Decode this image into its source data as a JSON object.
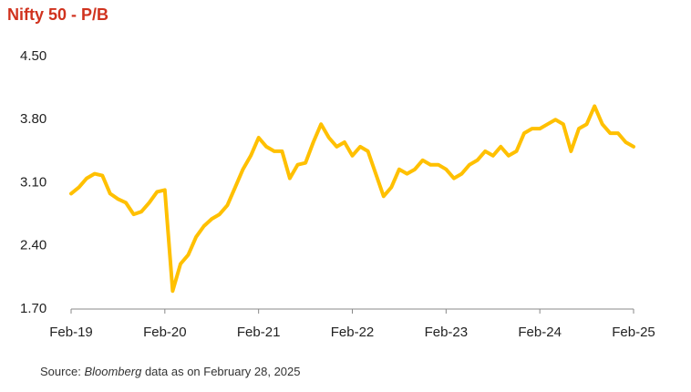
{
  "chart_data": {
    "type": "line",
    "title": "Nifty 50 - P/B",
    "source_prefix": "Source:",
    "source_italic": "Bloomberg",
    "source_suffix": "data as on February 28, 2025",
    "categories": [
      "Feb-19",
      null,
      null,
      null,
      null,
      null,
      null,
      null,
      null,
      null,
      null,
      null,
      "Feb-20",
      null,
      null,
      null,
      null,
      null,
      null,
      null,
      null,
      null,
      null,
      null,
      "Feb-21",
      null,
      null,
      null,
      null,
      null,
      null,
      null,
      null,
      null,
      null,
      null,
      "Feb-22",
      null,
      null,
      null,
      null,
      null,
      null,
      null,
      null,
      null,
      null,
      null,
      "Feb-23",
      null,
      null,
      null,
      null,
      null,
      null,
      null,
      null,
      null,
      null,
      null,
      "Feb-24",
      null,
      null,
      null,
      null,
      null,
      null,
      null,
      null,
      null,
      null,
      null,
      "Feb-25"
    ],
    "series": [
      {
        "name": "Nifty 50 P/B",
        "color": "#ffc000",
        "values": [
          2.98,
          3.05,
          3.15,
          3.2,
          3.18,
          2.98,
          2.92,
          2.88,
          2.75,
          2.78,
          2.88,
          3.0,
          3.02,
          1.9,
          2.2,
          2.3,
          2.5,
          2.62,
          2.7,
          2.75,
          2.85,
          3.05,
          3.25,
          3.4,
          3.6,
          3.5,
          3.45,
          3.45,
          3.15,
          3.3,
          3.32,
          3.55,
          3.75,
          3.6,
          3.5,
          3.55,
          3.4,
          3.5,
          3.45,
          3.2,
          2.95,
          3.05,
          3.25,
          3.2,
          3.25,
          3.35,
          3.3,
          3.3,
          3.25,
          3.15,
          3.2,
          3.3,
          3.35,
          3.45,
          3.4,
          3.5,
          3.4,
          3.45,
          3.65,
          3.7,
          3.7,
          3.75,
          3.8,
          3.75,
          3.45,
          3.7,
          3.75,
          3.95,
          3.75,
          3.65,
          3.65,
          3.55,
          3.5
        ]
      }
    ],
    "ylim": [
      1.7,
      4.5
    ],
    "yticks": [
      {
        "value": 1.7,
        "label": "1.70"
      },
      {
        "value": 2.4,
        "label": "2.40"
      },
      {
        "value": 3.1,
        "label": "3.10"
      },
      {
        "value": 3.8,
        "label": "3.80"
      },
      {
        "value": 4.5,
        "label": "4.50"
      }
    ],
    "grid": false
  }
}
